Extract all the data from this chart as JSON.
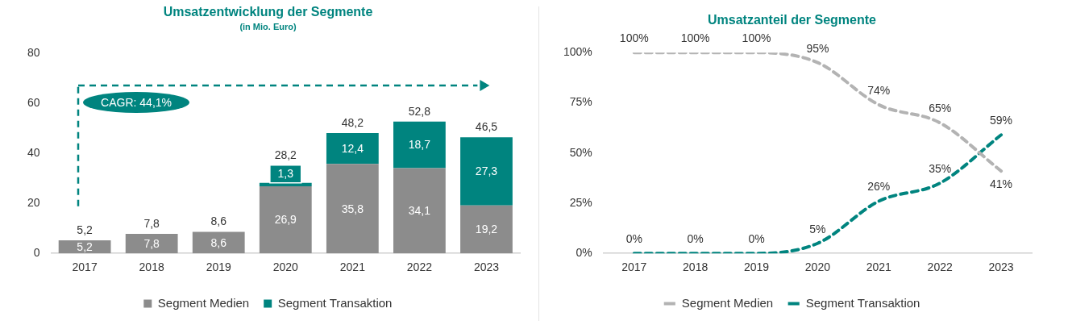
{
  "chart_data": [
    {
      "type": "bar",
      "title": "Umsatzentwicklung der Segmente",
      "subtitle": "(in Mio. Euro)",
      "categories": [
        "2017",
        "2018",
        "2019",
        "2020",
        "2021",
        "2022",
        "2023"
      ],
      "stacked": true,
      "series": [
        {
          "name": "Segment Medien",
          "color": "#8c8c8c",
          "values": [
            5.2,
            7.8,
            8.6,
            26.9,
            35.8,
            34.1,
            19.2
          ],
          "value_labels": [
            "5,2",
            "7,8",
            "8,6",
            "26,9",
            "35,8",
            "34,1",
            "19,2"
          ]
        },
        {
          "name": "Segment Transaktion",
          "color": "#00847f",
          "values": [
            0,
            0,
            0,
            1.3,
            12.4,
            18.7,
            27.3
          ],
          "value_labels": [
            null,
            null,
            null,
            "1,3",
            "12,4",
            "18,7",
            "27,3"
          ]
        }
      ],
      "totals": [
        "5,2",
        "7,8",
        "8,6",
        "28,2",
        "48,2",
        "52,8",
        "46,5"
      ],
      "ylim": [
        0,
        80
      ],
      "yticks": [
        0,
        20,
        40,
        60,
        80
      ],
      "grid": false,
      "legend": "bottom",
      "annotations": [
        "CAGR: 44,1%"
      ]
    },
    {
      "type": "line",
      "title": "Umsatzanteil der Segmente",
      "categories": [
        "2017",
        "2018",
        "2019",
        "2020",
        "2021",
        "2022",
        "2023"
      ],
      "series": [
        {
          "name": "Segment Medien",
          "color": "#b3b3b3",
          "values": [
            100,
            100,
            100,
            95,
            74,
            65,
            41
          ],
          "value_labels": [
            "100%",
            "100%",
            "100%",
            "95%",
            "74%",
            "65%",
            "41%"
          ]
        },
        {
          "name": "Segment Transaktion",
          "color": "#00847f",
          "values": [
            0,
            0,
            0,
            5,
            26,
            35,
            59
          ],
          "value_labels": [
            "0%",
            "0%",
            "0%",
            "5%",
            "26%",
            "35%",
            "59%"
          ]
        }
      ],
      "ylim": [
        0,
        100
      ],
      "yticks": [
        {
          "value": 0,
          "label": "0%"
        },
        {
          "value": 25,
          "label": "25%"
        },
        {
          "value": 50,
          "label": "50%"
        },
        {
          "value": 75,
          "label": "75%"
        },
        {
          "value": 100,
          "label": "100%"
        }
      ],
      "grid": false,
      "legend": "bottom",
      "marker": "none",
      "line_style": "dashed"
    }
  ]
}
